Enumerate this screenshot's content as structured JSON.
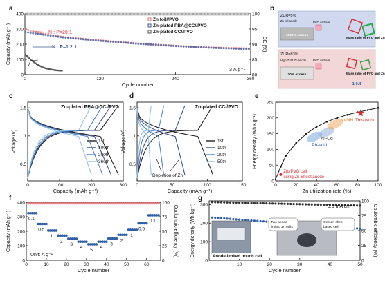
{
  "chart_data": [
    {
      "panel": "a",
      "type": "scatter",
      "xlabel": "Cycle number",
      "ylabel": "Capacity (mAh g⁻¹)",
      "y2label": "CE (%)",
      "xlim": [
        0,
        360
      ],
      "ylim": [
        0,
        400
      ],
      "y2lim": [
        80,
        100
      ],
      "xticks": [
        0,
        120,
        240,
        360
      ],
      "yticks": [
        0,
        100,
        200,
        300,
        400
      ],
      "y2ticks": [
        80,
        85,
        90,
        95,
        100
      ],
      "rate_label": "3 A g⁻¹",
      "annotations": [
        "N : P=20:1",
        "N : P=1.2:1"
      ],
      "legend_position": "top-right",
      "series": [
        {
          "name": "Zn foil//PVO",
          "color": "#e8737a",
          "x": [
            0,
            20,
            60,
            120,
            180,
            240,
            300,
            360
          ],
          "y": [
            300,
            275,
            248,
            225,
            205,
            190,
            178,
            172
          ]
        },
        {
          "name": "Zn-plated PBA@CC//PVO",
          "color": "#3c5a99",
          "x": [
            0,
            20,
            60,
            120,
            180,
            240,
            300,
            360
          ],
          "y": [
            280,
            268,
            245,
            222,
            203,
            188,
            176,
            168
          ]
        },
        {
          "name": "Zn-plated CC//PVO",
          "color": "#555555",
          "x": [
            0,
            5,
            10,
            20,
            30,
            40,
            50,
            60
          ],
          "y": [
            135,
            115,
            95,
            65,
            45,
            35,
            28,
            25
          ]
        }
      ],
      "ce_value": 100
    },
    {
      "panel": "b",
      "type": "table",
      "top": {
        "zur": "ZUR=5%",
        "anode": "Zn foil anode",
        "cathode": "PVO cathode",
        "excess": "1800% excess",
        "ratio_label": "Mass ratio of PVO and Zn"
      },
      "bottom": {
        "zur": "ZUR=83%",
        "anode": "High ZUR Zn anode",
        "cathode": "PVO cathode",
        "excess": "20% excess",
        "ratio_label": "Mass ratio of PVO and Zn",
        "ratio": "1:0.4"
      }
    },
    {
      "panel": "c",
      "type": "line",
      "title": "Zn-plated PBA@CC//PVO",
      "xlabel": "Capacity (mAh g⁻¹)",
      "ylabel": "Voltage (V)",
      "xlim": [
        0,
        300
      ],
      "ylim": [
        0.2,
        1.6
      ],
      "xticks": [
        0,
        100,
        200,
        300
      ],
      "yticks": [
        0.5,
        1.0,
        1.5
      ],
      "series": [
        {
          "name": "1st",
          "color": "#222222",
          "cap": 285
        },
        {
          "name": "100th",
          "color": "#3c4f8c",
          "cap": 262
        },
        {
          "name": "200th",
          "color": "#4a86c8",
          "cap": 235
        },
        {
          "name": "360th",
          "color": "#8fc3e8",
          "cap": 200
        }
      ]
    },
    {
      "panel": "d",
      "type": "line",
      "title": "Zn-plated CC//PVO",
      "xlabel": "Capacity (mAh g⁻¹)",
      "ylabel": "Voltage (V)",
      "xlim": [
        0,
        150
      ],
      "ylim": [
        0.2,
        1.6
      ],
      "xticks": [
        0,
        50,
        100,
        150
      ],
      "yticks": [
        0.5,
        1.0,
        1.5
      ],
      "annotation": "Depletion of Zn",
      "series": [
        {
          "name": "1st",
          "color": "#222222",
          "cap": 108
        },
        {
          "name": "10th",
          "color": "#3c4f8c",
          "cap": 68
        },
        {
          "name": "20th",
          "color": "#4a86c8",
          "cap": 38
        },
        {
          "name": "50th",
          "color": "#8fc3e8",
          "cap": 20
        }
      ]
    },
    {
      "panel": "e",
      "type": "line",
      "xlabel": "Zn utilization rate (%)",
      "ylabel": "Energy density (Wh Kg⁻¹)",
      "xlim": [
        0,
        100
      ],
      "ylim": [
        0,
        250
      ],
      "xticks": [
        0,
        20,
        40,
        60,
        80,
        100
      ],
      "yticks": [
        0,
        50,
        100,
        150,
        200,
        250
      ],
      "x": [
        0,
        5,
        10,
        20,
        30,
        40,
        50,
        60,
        70,
        80,
        90,
        100
      ],
      "y": [
        5,
        45,
        80,
        120,
        150,
        172,
        188,
        200,
        210,
        218,
        225,
        232
      ],
      "regions": [
        {
          "name": "Pb-acid",
          "x": 38,
          "y": 140,
          "color": "#7aa7df"
        },
        {
          "name": "Ni-Cd",
          "x": 50,
          "y": 155,
          "color": "#8fb2dc"
        },
        {
          "name": "Ni-MH",
          "x": 58,
          "y": 180,
          "color": "#f0a860"
        }
      ],
      "highlight": {
        "name": "This work",
        "x": 83,
        "y": 215
      },
      "low_label": "Zn//PVO cell using Zn Sheet anode",
      "low_point": {
        "x": 5,
        "y": 20
      }
    },
    {
      "panel": "f",
      "type": "scatter",
      "xlabel": "Cycle number",
      "ylabel": "Capacity (mAh g⁻¹)",
      "y2label": "Coulombic efficiency (%)",
      "xlim": [
        0,
        67
      ],
      "ylim": [
        0,
        400
      ],
      "y2lim": [
        0,
        100
      ],
      "xticks": [
        0,
        10,
        20,
        30,
        40,
        50,
        60
      ],
      "yticks": [
        0,
        100,
        200,
        300,
        400
      ],
      "y2ticks": [
        0,
        25,
        50,
        75,
        100
      ],
      "unit_label": "Unit: A g⁻¹",
      "rate_steps": [
        {
          "rate": "0.1",
          "x0": 0,
          "x1": 5,
          "cap": 325
        },
        {
          "rate": "0.5",
          "x0": 5,
          "x1": 10,
          "cap": 250
        },
        {
          "rate": "1",
          "x0": 10,
          "x1": 15,
          "cap": 205
        },
        {
          "rate": "2",
          "x0": 15,
          "x1": 20,
          "cap": 170
        },
        {
          "rate": "3",
          "x0": 20,
          "x1": 25,
          "cap": 148
        },
        {
          "rate": "4",
          "x0": 25,
          "x1": 30,
          "cap": 128
        },
        {
          "rate": "5",
          "x0": 30,
          "x1": 35,
          "cap": 110
        },
        {
          "rate": "4",
          "x0": 35,
          "x1": 40,
          "cap": 128
        },
        {
          "rate": "3",
          "x0": 40,
          "x1": 45,
          "cap": 150
        },
        {
          "rate": "2",
          "x0": 45,
          "x1": 50,
          "cap": 175
        },
        {
          "rate": "1",
          "x0": 50,
          "x1": 55,
          "cap": 210
        },
        {
          "rate": "0.5",
          "x0": 55,
          "x1": 60,
          "cap": 255
        },
        {
          "rate": "0.1",
          "x0": 60,
          "x1": 66,
          "cap": 310
        }
      ],
      "ce_value": 98
    },
    {
      "panel": "g",
      "type": "scatter",
      "xlabel": "Cycle number",
      "ylabel": "Energy density (Wh kg⁻¹)",
      "y2label": "Coulombic efficiency (%)",
      "xlim": [
        0,
        50
      ],
      "ylim": [
        0,
        320
      ],
      "y2lim": [
        0,
        100
      ],
      "xticks": [
        10,
        20,
        30,
        40,
        50
      ],
      "yticks": [
        0,
        100,
        200,
        300
      ],
      "y2ticks": [
        0,
        25,
        50,
        75,
        100
      ],
      "rate_label": "0.5 mA cm⁻²",
      "inset_left": "Anode-limited pouch cell",
      "bubble_1": "Two anode-limited Zn cells",
      "bubble_2": "One Zn sheet-based cell",
      "energy": {
        "x0": 1,
        "x1": 50,
        "y0": 230,
        "y1": 170
      },
      "ce": {
        "x0": 1,
        "x1": 50,
        "y0": 98,
        "y1": 92
      }
    }
  ],
  "panel_labels": [
    "a",
    "b",
    "c",
    "d",
    "e",
    "f",
    "g"
  ]
}
